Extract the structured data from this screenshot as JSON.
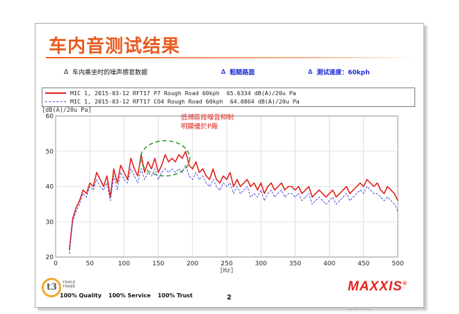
{
  "slide": {
    "title": "车内音测试结果",
    "info": [
      {
        "label": "车内乘坐时的噪声感官数据"
      },
      {
        "label": "粗糙路面"
      },
      {
        "label": "测试速度：60kph"
      }
    ],
    "triangle": "∆",
    "annotation_lines": [
      "低頻區段噪音抑制",
      "明顯優於P廠"
    ],
    "brand_small": "TRIPLE THREE",
    "brand_mark": "t3",
    "motto": [
      "100% Quality",
      "100% Service",
      "100% Trust"
    ],
    "page_number": "2",
    "brand": "MAXXIS",
    "brand_reg": "®",
    "watermark": "—— ——"
  },
  "chart_data": {
    "type": "line",
    "ylabel": "[dB(A)/20u Pa]",
    "xlabel": "[Hz]",
    "xlim": [
      0,
      500
    ],
    "ylim": [
      20,
      60
    ],
    "xticks": [
      0,
      50,
      100,
      150,
      200,
      250,
      300,
      350,
      400,
      450,
      500
    ],
    "yticks": [
      20,
      30,
      40,
      50,
      60
    ],
    "grid": true,
    "legend_position": "top",
    "highlight_ellipse": {
      "x_center": 160,
      "y_center": 48,
      "x_radius": 36,
      "y_radius": 5
    },
    "series": [
      {
        "name": "MIC 1, 2015-03-12 RFT17 P7 Rough Road 60kph  65.6334 dB(A)/20u Pa",
        "color": "#e0201c",
        "style": "solid",
        "x": [
          20,
          25,
          30,
          35,
          40,
          45,
          50,
          55,
          60,
          65,
          70,
          75,
          80,
          85,
          90,
          95,
          100,
          105,
          110,
          115,
          120,
          125,
          130,
          135,
          140,
          145,
          150,
          155,
          160,
          165,
          170,
          175,
          180,
          185,
          190,
          195,
          200,
          205,
          210,
          215,
          220,
          225,
          230,
          235,
          240,
          245,
          250,
          255,
          260,
          265,
          270,
          275,
          280,
          285,
          290,
          295,
          300,
          305,
          310,
          315,
          320,
          325,
          330,
          335,
          340,
          345,
          350,
          355,
          360,
          365,
          370,
          375,
          380,
          385,
          390,
          395,
          400,
          405,
          410,
          415,
          420,
          425,
          430,
          435,
          440,
          445,
          450,
          455,
          460,
          465,
          470,
          475,
          480,
          485,
          490,
          495,
          500
        ],
        "y": [
          22,
          31,
          34,
          36,
          39,
          38,
          41,
          40,
          44,
          42,
          40,
          43,
          37,
          45,
          41,
          46,
          44,
          42,
          48,
          45,
          43,
          49,
          44,
          47,
          45,
          48,
          44,
          46,
          49,
          47,
          48,
          47,
          49,
          48,
          50,
          46,
          45,
          47,
          44,
          45,
          43,
          42,
          45,
          42,
          41,
          43,
          42,
          44,
          40,
          42,
          40,
          41,
          42,
          40,
          41,
          39,
          41,
          38,
          40,
          41,
          39,
          40,
          41,
          39,
          40,
          40,
          39,
          40,
          38,
          39,
          40,
          37,
          38,
          39,
          38,
          37,
          38,
          39,
          37,
          38,
          39,
          40,
          38,
          39,
          40,
          41,
          40,
          42,
          41,
          40,
          41,
          39,
          38,
          40,
          39,
          38,
          36
        ]
      },
      {
        "name": "MIC 1, 2015-03-12 RFT17 CO4 Rough Road 60kph  64.0864 dB(A)/20u Pa",
        "color": "#4a4ad8",
        "style": "dashed",
        "x": [
          20,
          25,
          30,
          35,
          40,
          45,
          50,
          55,
          60,
          65,
          70,
          75,
          80,
          85,
          90,
          95,
          100,
          105,
          110,
          115,
          120,
          125,
          130,
          135,
          140,
          145,
          150,
          155,
          160,
          165,
          170,
          175,
          180,
          185,
          190,
          195,
          200,
          205,
          210,
          215,
          220,
          225,
          230,
          235,
          240,
          245,
          250,
          255,
          260,
          265,
          270,
          275,
          280,
          285,
          290,
          295,
          300,
          305,
          310,
          315,
          320,
          325,
          330,
          335,
          340,
          345,
          350,
          355,
          360,
          365,
          370,
          375,
          380,
          385,
          390,
          395,
          400,
          405,
          410,
          415,
          420,
          425,
          430,
          435,
          440,
          445,
          450,
          455,
          460,
          465,
          470,
          475,
          480,
          485,
          490,
          495,
          500
        ],
        "y": [
          21,
          30,
          33,
          35,
          38,
          37,
          40,
          39,
          42,
          40,
          39,
          41,
          36,
          43,
          39,
          44,
          42,
          41,
          45,
          43,
          41,
          45,
          42,
          44,
          43,
          45,
          42,
          44,
          45,
          44,
          45,
          44,
          45,
          44,
          46,
          43,
          42,
          44,
          42,
          43,
          41,
          40,
          42,
          40,
          39,
          41,
          40,
          41,
          38,
          40,
          38,
          39,
          40,
          37,
          38,
          37,
          39,
          36,
          38,
          39,
          37,
          38,
          39,
          37,
          38,
          38,
          37,
          38,
          36,
          37,
          38,
          35,
          36,
          37,
          36,
          35,
          36,
          37,
          35,
          36,
          37,
          38,
          36,
          37,
          38,
          39,
          38,
          40,
          39,
          38,
          38,
          37,
          36,
          37,
          36,
          35,
          33
        ]
      }
    ]
  }
}
